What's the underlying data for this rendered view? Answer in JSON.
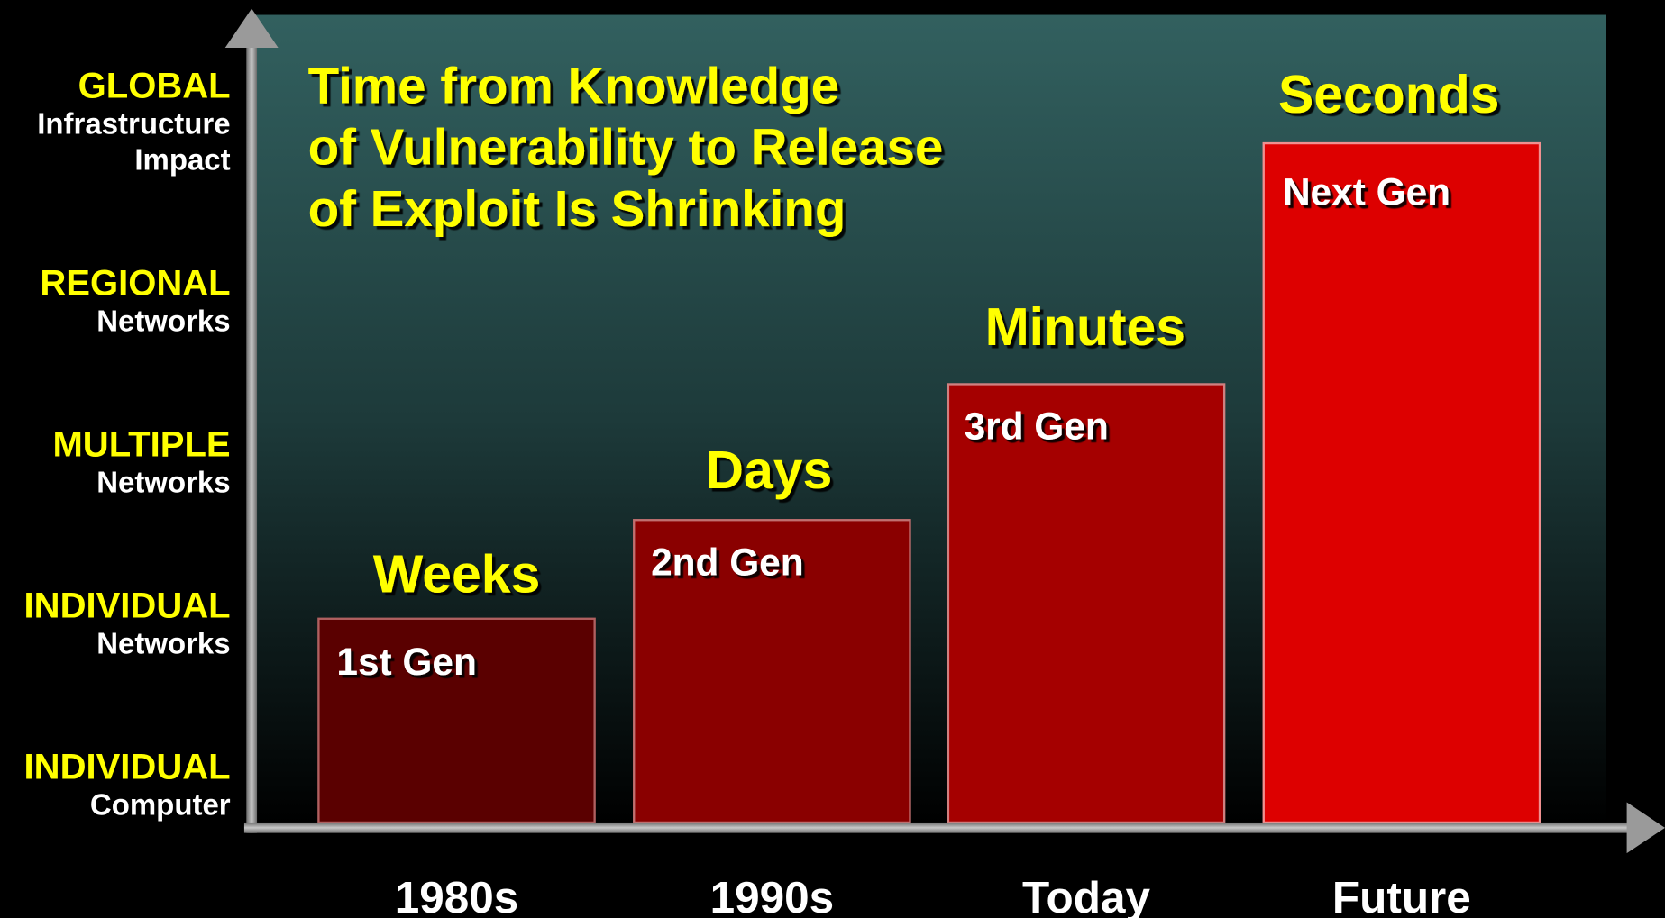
{
  "title": [
    "Time from Knowledge",
    "of Vulnerability to Release",
    "of Exploit Is Shrinking"
  ],
  "y_levels": [
    {
      "level": "GLOBAL",
      "detail": [
        "Infrastructure",
        "Impact"
      ]
    },
    {
      "level": "REGIONAL",
      "detail": [
        "Networks"
      ]
    },
    {
      "level": "MULTIPLE",
      "detail": [
        "Networks"
      ]
    },
    {
      "level": "INDIVIDUAL",
      "detail": [
        "Networks"
      ]
    },
    {
      "level": "INDIVIDUAL",
      "detail": [
        "Computer"
      ]
    }
  ],
  "columns": [
    {
      "period": "1980s",
      "time": "Weeks",
      "generation": "1st Gen"
    },
    {
      "period": "1990s",
      "time": "Days",
      "generation": "2nd Gen"
    },
    {
      "period": "Today",
      "time": "Minutes",
      "generation": "3rd Gen"
    },
    {
      "period": "Future",
      "time": "Seconds",
      "generation": "Next Gen"
    }
  ]
}
